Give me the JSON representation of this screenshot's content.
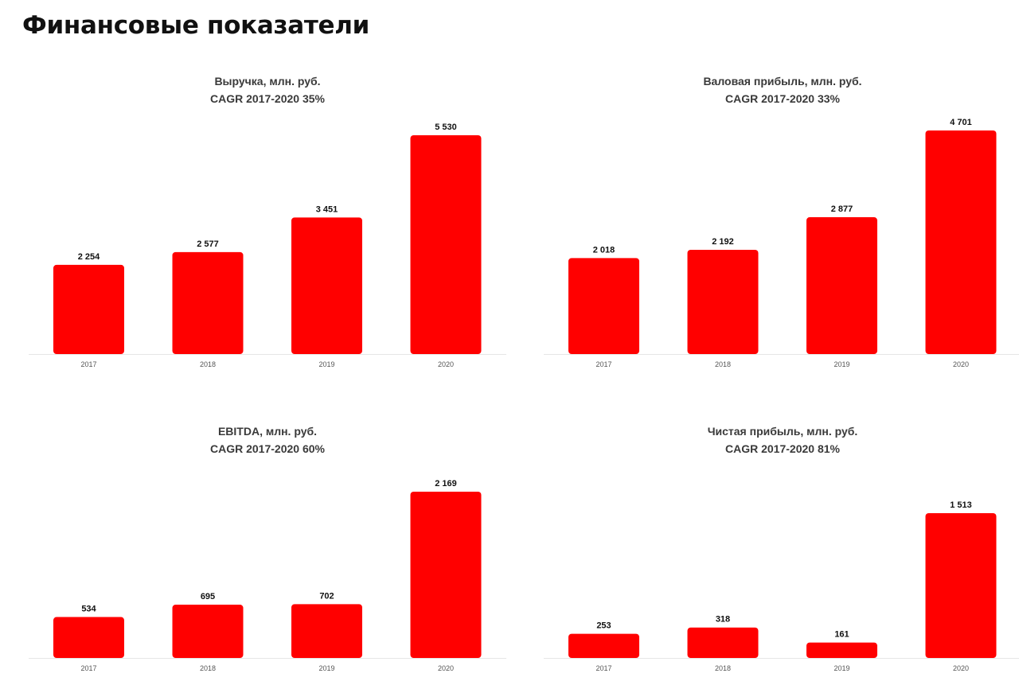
{
  "page": {
    "title": "Финансовые показатели"
  },
  "colors": {
    "bar": "#ff0000",
    "text": "#111111",
    "axis": "#e6e6e6"
  },
  "chart_data": [
    {
      "type": "bar",
      "title": "Выручка, млн. руб.",
      "subtitle": "CAGR 2017-2020 35%",
      "categories": [
        "2017",
        "2018",
        "2019",
        "2020"
      ],
      "values": [
        2254,
        2577,
        3451,
        5530
      ],
      "value_labels": [
        "2 254",
        "2 577",
        "3 451",
        "5 530"
      ],
      "ylim": [
        0,
        5530
      ],
      "grid": false,
      "legend": "none"
    },
    {
      "type": "bar",
      "title": "Валовая прибыль, млн. руб.",
      "subtitle": "CAGR 2017-2020 33%",
      "categories": [
        "2017",
        "2018",
        "2019",
        "2020"
      ],
      "values": [
        2018,
        2192,
        2877,
        4701
      ],
      "value_labels": [
        "2 018",
        "2 192",
        "2 877",
        "4 701"
      ],
      "ylim": [
        0,
        4701
      ],
      "grid": false,
      "legend": "none"
    },
    {
      "type": "bar",
      "title": "EBITDA, млн. руб.",
      "subtitle": "CAGR 2017-2020 60%",
      "categories": [
        "2017",
        "2018",
        "2019",
        "2020"
      ],
      "values": [
        534,
        695,
        702,
        2169
      ],
      "value_labels": [
        "534",
        "695",
        "702",
        "2 169"
      ],
      "ylim": [
        0,
        2169
      ],
      "grid": false,
      "legend": "none"
    },
    {
      "type": "bar",
      "title": "Чистая прибыль, млн. руб.",
      "subtitle": "CAGR 2017-2020 81%",
      "categories": [
        "2017",
        "2018",
        "2019",
        "2020"
      ],
      "values": [
        253,
        318,
        161,
        1513
      ],
      "value_labels": [
        "253",
        "318",
        "161",
        "1 513"
      ],
      "ylim": [
        0,
        1513
      ],
      "grid": false,
      "legend": "none"
    }
  ]
}
